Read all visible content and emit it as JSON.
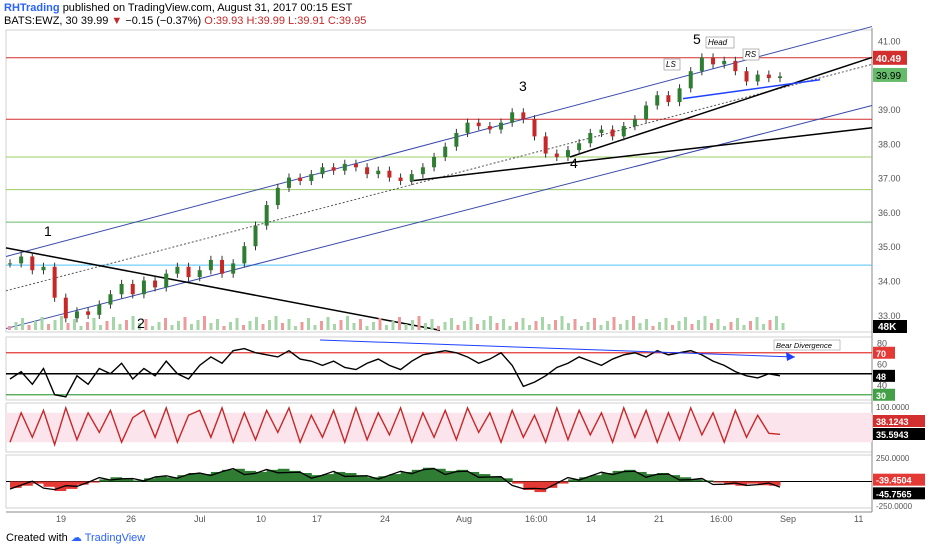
{
  "header": {
    "brand": "RHTrading",
    "published": "published on TradingView.com, August 31, 2017 00:15 EST",
    "symbol": "BATS:EWZ, 30",
    "last": "39.99",
    "change": "−0.15 (−0.37%)",
    "ohlc": "O:39.93 H:39.99 L:39.91 C:39.95"
  },
  "footer": {
    "created_with": "Created with",
    "tradingview": "TradingView"
  },
  "chart_data": [
    {
      "type": "line",
      "pane": "price",
      "y_ticks": [
        "41.00",
        "40.00",
        "39.00",
        "38.00",
        "37.00",
        "36.00",
        "35.00",
        "34.00",
        "33.00"
      ],
      "ylim": [
        32.5,
        41.3
      ],
      "x_ticks": [
        "19",
        "26",
        "Jul",
        "10",
        "17",
        "24",
        "Aug",
        "16:00",
        "14",
        "21",
        "16:00",
        "Sep",
        "11"
      ],
      "price_labels": {
        "resistance": "40.49",
        "last": "39.99",
        "volume": "48K"
      },
      "wave_labels": [
        "1",
        "2",
        "3",
        "4",
        "5"
      ],
      "pattern_labels": [
        "LS",
        "Head",
        "RS"
      ],
      "series": [
        {
          "values": [
            34.5,
            34.7,
            34.3,
            34.4,
            33.5,
            32.9,
            33.1,
            33.0,
            33.3,
            33.6,
            33.9,
            33.6,
            34.0,
            33.8,
            34.2,
            34.4,
            34.1,
            34.3,
            34.6,
            34.2,
            34.5,
            35.0,
            35.6,
            36.2,
            36.7,
            37.0,
            36.9,
            37.1,
            37.3,
            37.2,
            37.4,
            37.3,
            37.1,
            37.2,
            37.0,
            36.9,
            37.1,
            37.3,
            37.6,
            37.9,
            38.3,
            38.6,
            38.5,
            38.4,
            38.6,
            38.9,
            38.7,
            38.2,
            37.7,
            37.6,
            37.8,
            38.0,
            38.3,
            38.4,
            38.2,
            38.5,
            38.7,
            39.1,
            39.4,
            39.2,
            39.6,
            40.1,
            40.5,
            40.3,
            40.4,
            40.1,
            39.8,
            40.0,
            39.9,
            39.95
          ]
        }
      ]
    },
    {
      "type": "line",
      "pane": "rsi",
      "y_ticks": [
        "80",
        "70",
        "60",
        "50",
        "48",
        "40",
        "30"
      ],
      "ylim": [
        25,
        85
      ],
      "levels": [
        70,
        50,
        30
      ],
      "annotation": "Bear Divergence",
      "series": [
        {
          "values": [
            45,
            52,
            40,
            55,
            30,
            28,
            48,
            40,
            55,
            50,
            60,
            45,
            55,
            48,
            62,
            50,
            45,
            58,
            66,
            60,
            72,
            74,
            70,
            68,
            66,
            72,
            64,
            62,
            58,
            62,
            56,
            54,
            60,
            64,
            58,
            54,
            62,
            68,
            70,
            72,
            70,
            66,
            60,
            64,
            70,
            58,
            38,
            42,
            48,
            56,
            60,
            66,
            62,
            58,
            64,
            68,
            70,
            66,
            72,
            68,
            70,
            72,
            68,
            62,
            58,
            52,
            48,
            46,
            50,
            48
          ]
        }
      ]
    },
    {
      "type": "line",
      "pane": "stoch",
      "y_ticks": [
        "100.0000",
        "38.1243",
        "35.5943"
      ],
      "ylim": [
        0,
        100
      ],
      "series": [
        {
          "values": [
            20,
            80,
            30,
            85,
            15,
            90,
            25,
            80,
            40,
            85,
            20,
            70,
            85,
            30,
            90,
            20,
            75,
            85,
            30,
            90,
            20,
            80,
            25,
            85,
            40,
            90,
            20,
            75,
            30,
            85,
            20,
            90,
            25,
            80,
            35,
            90,
            20,
            80,
            30,
            85,
            25,
            90,
            40,
            80,
            20,
            85,
            30,
            75,
            20,
            90,
            25,
            85,
            35,
            80,
            20,
            90,
            30,
            85,
            20,
            80,
            25,
            90,
            35,
            80,
            20,
            85,
            30,
            75,
            38,
            36
          ]
        }
      ]
    },
    {
      "type": "area",
      "pane": "oscillator",
      "y_ticks": [
        "250.0000",
        "-39.4504",
        "-45.7565",
        "-250.0000"
      ],
      "ylim": [
        -250,
        250
      ],
      "series": [
        {
          "values": [
            -60,
            -40,
            -20,
            -50,
            -90,
            -70,
            -30,
            -10,
            20,
            40,
            30,
            10,
            30,
            50,
            40,
            60,
            80,
            70,
            90,
            110,
            120,
            100,
            90,
            110,
            120,
            100,
            80,
            60,
            70,
            90,
            80,
            60,
            40,
            50,
            70,
            90,
            110,
            130,
            120,
            100,
            110,
            90,
            70,
            50,
            30,
            -20,
            -80,
            -100,
            -60,
            -20,
            20,
            40,
            60,
            80,
            100,
            110,
            90,
            70,
            80,
            60,
            40,
            20,
            10,
            -10,
            -30,
            -40,
            -20,
            -35,
            -40,
            -39
          ]
        }
      ]
    }
  ]
}
